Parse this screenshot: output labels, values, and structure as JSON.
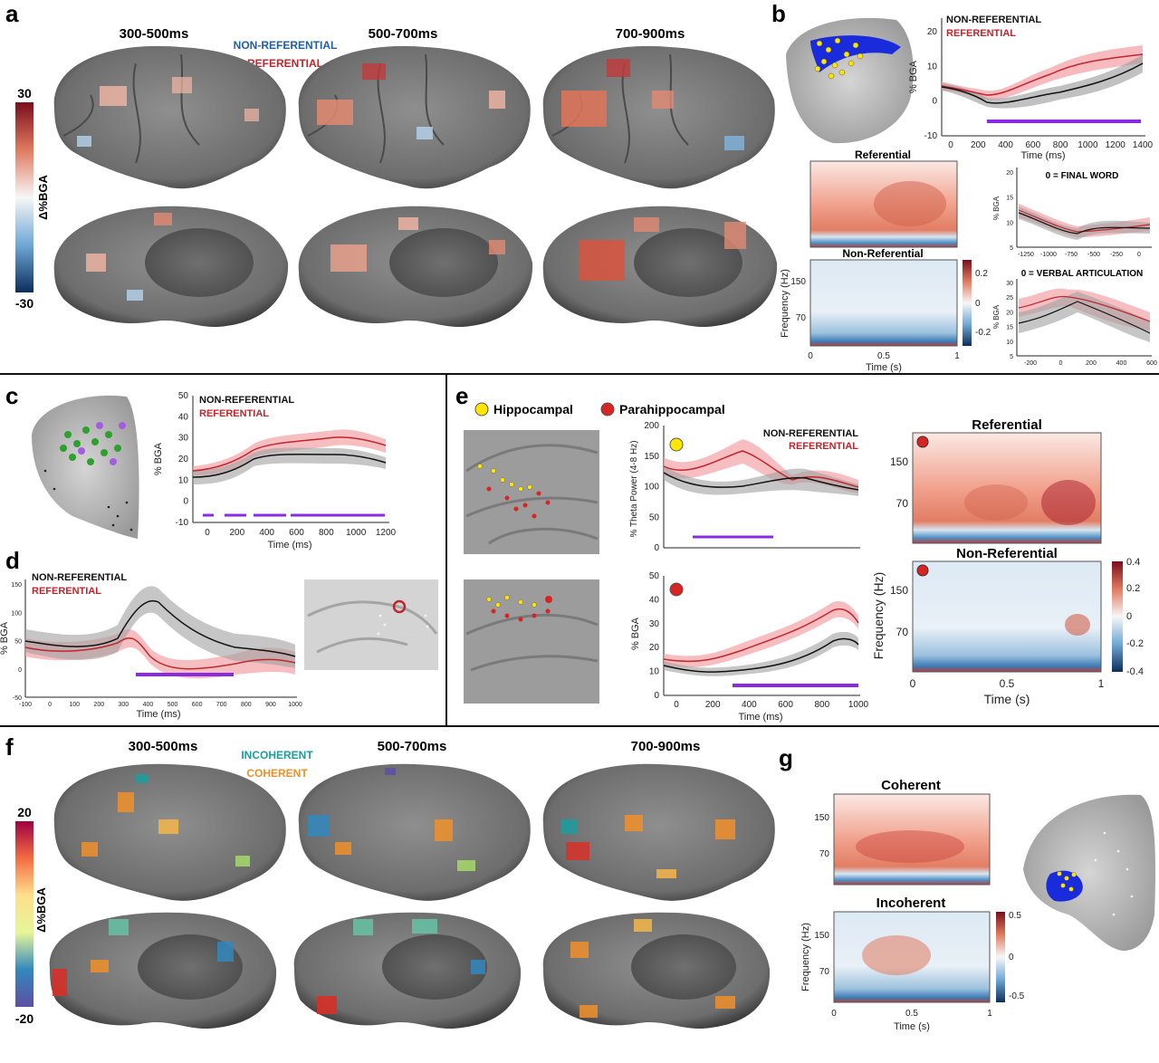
{
  "figure": {
    "panels": {
      "a": {
        "label": "a",
        "windows": [
          "300-500ms",
          "500-700ms",
          "700-900ms"
        ],
        "legend": {
          "nonref": "NON-REFERENTIAL",
          "ref": "REFERENTIAL"
        },
        "colorbar": {
          "max": "30",
          "min": "-30",
          "label": "Δ%BGA"
        }
      },
      "b": {
        "label": "b",
        "legend": {
          "nonref": "NON-REFERENTIAL",
          "ref": "REFERENTIAL"
        },
        "ylabel": "% BGA",
        "xlabel": "Time (ms)",
        "yticks": [
          "20",
          "10",
          "0",
          "-10"
        ],
        "xticks": [
          "0",
          "200",
          "400",
          "600",
          "800",
          "1000",
          "1200",
          "1400"
        ],
        "tf": {
          "ref_title": "Referential",
          "nonref_title": "Non-Referential",
          "ylabel": "Frequency (Hz)",
          "xlabel": "Time (s)",
          "yticks": [
            "150",
            "70"
          ],
          "xticks": [
            "0",
            "0.5",
            "1"
          ],
          "cbar": [
            "0.2",
            "0",
            "-0.2"
          ]
        },
        "small1": {
          "title": "0 = FINAL WORD",
          "ylabel": "% BGA",
          "yticks": [
            "20",
            "15",
            "10",
            "5"
          ],
          "xticks": [
            "-1250",
            "-1000",
            "-750",
            "-500",
            "-250",
            "0"
          ]
        },
        "small2": {
          "title": "0 = VERBAL ARTICULATION",
          "ylabel": "% BGA",
          "yticks": [
            "30",
            "25",
            "20",
            "15",
            "10",
            "5"
          ],
          "xticks": [
            "-200",
            "0",
            "200",
            "400",
            "600"
          ]
        }
      },
      "c": {
        "label": "c",
        "legend": {
          "nonref": "NON-REFERENTIAL",
          "ref": "REFERENTIAL"
        },
        "ylabel": "% BGA",
        "xlabel": "Time (ms)",
        "yticks": [
          "50",
          "40",
          "30",
          "20",
          "10",
          "0",
          "-10"
        ],
        "xticks": [
          "0",
          "200",
          "400",
          "600",
          "800",
          "1000",
          "1200"
        ]
      },
      "d": {
        "label": "d",
        "legend": {
          "nonref": "NON-REFERENTIAL",
          "ref": "REFERENTIAL"
        },
        "ylabel": "% BGA",
        "xlabel": "Time (ms)",
        "yticks": [
          "150",
          "100",
          "50",
          "0",
          "-50"
        ],
        "xticks": [
          "-100",
          "0",
          "100",
          "200",
          "300",
          "400",
          "500",
          "600",
          "700",
          "800",
          "900",
          "1000"
        ]
      },
      "e": {
        "label": "e",
        "legend": {
          "hippo": "Hippocampal",
          "parahippo": "Parahippocampal",
          "nonref": "NON-REFERENTIAL",
          "ref": "REFERENTIAL"
        },
        "theta": {
          "ylabel": "% Theta Power (4-8 Hz)",
          "yticks": [
            "200",
            "150",
            "100",
            "50",
            "0"
          ]
        },
        "bga": {
          "ylabel": "% BGA",
          "xlabel": "Time (ms)",
          "yticks": [
            "50",
            "40",
            "30",
            "20",
            "10",
            "0"
          ],
          "xticks": [
            "0",
            "200",
            "400",
            "600",
            "800",
            "1000"
          ]
        },
        "tf": {
          "ref_title": "Referential",
          "nonref_title": "Non-Referential",
          "ylabel": "Frequency (Hz)",
          "xlabel": "Time (s)",
          "yticks": [
            "150",
            "70"
          ],
          "xticks": [
            "0",
            "0.5",
            "1"
          ],
          "cbar": [
            "0.4",
            "0.2",
            "0",
            "-0.2",
            "-0.4"
          ]
        }
      },
      "f": {
        "label": "f",
        "windows": [
          "300-500ms",
          "500-700ms",
          "700-900ms"
        ],
        "legend": {
          "incoh": "INCOHERENT",
          "coh": "COHERENT"
        },
        "colorbar": {
          "max": "20",
          "min": "-20",
          "label": "Δ%BGA"
        }
      },
      "g": {
        "label": "g",
        "coh_title": "Coherent",
        "incoh_title": "Incoherent",
        "ylabel": "Frequency (Hz)",
        "xlabel": "Time (s)",
        "yticks": [
          "150",
          "70"
        ],
        "xticks": [
          "0",
          "0.5",
          "1"
        ],
        "cbar": [
          "0.5",
          "0",
          "-0.5"
        ]
      }
    },
    "colors": {
      "ref": "#c0262d",
      "nonref": "#111111",
      "ref_band": "#f4a3a8",
      "nonref_band": "#a0a0a0",
      "sig": "#8a2be2",
      "incoh": "#1a9e9e",
      "coh": "#f0902a",
      "legend_blue": "#1f5fa8"
    }
  }
}
